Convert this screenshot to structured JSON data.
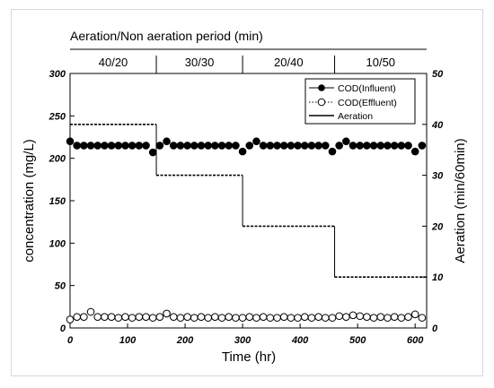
{
  "chart_data": {
    "type": "line",
    "title": "Aeration/Non aeration period (min)",
    "xlabel": "Time (hr)",
    "ylabel_left": "concentration (mg/L)",
    "ylabel_right": "Aeration (min/60min)",
    "xlim": [
      0,
      620
    ],
    "ylim_left": [
      0,
      300
    ],
    "ylim_right": [
      0,
      50
    ],
    "x_ticks": [
      "0",
      "100",
      "200",
      "300",
      "400",
      "500",
      "600"
    ],
    "y_left_ticks": [
      "0",
      "50",
      "100",
      "150",
      "200",
      "250",
      "300"
    ],
    "y_right_ticks": [
      "0",
      "10",
      "20",
      "30",
      "40",
      "50"
    ],
    "periods": [
      {
        "label": "40/20",
        "start": 0,
        "end": 150
      },
      {
        "label": "30/30",
        "start": 150,
        "end": 300
      },
      {
        "label": "20/40",
        "start": 300,
        "end": 460
      },
      {
        "label": "10/50",
        "start": 460,
        "end": 620
      }
    ],
    "legend": {
      "position": "top-right",
      "entries": [
        "COD(Influent)",
        "COD(Effluent)",
        "Aeration"
      ]
    },
    "series": [
      {
        "name": "COD(Influent)",
        "axis": "left",
        "marker": "filled-circle",
        "x": [
          0,
          12,
          24,
          36,
          48,
          60,
          72,
          84,
          96,
          108,
          120,
          132,
          144,
          156,
          168,
          180,
          192,
          204,
          216,
          228,
          240,
          252,
          264,
          276,
          288,
          300,
          312,
          324,
          336,
          348,
          360,
          372,
          384,
          396,
          408,
          420,
          432,
          444,
          456,
          468,
          480,
          492,
          504,
          516,
          528,
          540,
          552,
          564,
          576,
          588,
          600,
          612
        ],
        "y": [
          220,
          215,
          215,
          215,
          215,
          215,
          215,
          215,
          215,
          215,
          215,
          215,
          207,
          215,
          220,
          215,
          215,
          215,
          215,
          215,
          215,
          215,
          215,
          215,
          215,
          208,
          215,
          220,
          215,
          215,
          215,
          215,
          215,
          215,
          215,
          215,
          215,
          215,
          208,
          215,
          220,
          215,
          215,
          215,
          215,
          215,
          215,
          215,
          215,
          215,
          208,
          215
        ]
      },
      {
        "name": "COD(Effluent)",
        "axis": "left",
        "marker": "open-circle",
        "x": [
          0,
          12,
          24,
          36,
          48,
          60,
          72,
          84,
          96,
          108,
          120,
          132,
          144,
          156,
          168,
          180,
          192,
          204,
          216,
          228,
          240,
          252,
          264,
          276,
          288,
          300,
          312,
          324,
          336,
          348,
          360,
          372,
          384,
          396,
          408,
          420,
          432,
          444,
          456,
          468,
          480,
          492,
          504,
          516,
          528,
          540,
          552,
          564,
          576,
          588,
          600,
          612
        ],
        "y": [
          10,
          13,
          13,
          19,
          13,
          13,
          13,
          12,
          13,
          12,
          13,
          13,
          12,
          13,
          17,
          13,
          12,
          13,
          12,
          13,
          12,
          13,
          12,
          13,
          12,
          12,
          13,
          12,
          13,
          12,
          12,
          13,
          12,
          12,
          13,
          12,
          13,
          12,
          12,
          14,
          13,
          15,
          14,
          13,
          12,
          13,
          12,
          13,
          12,
          13,
          16,
          12
        ]
      },
      {
        "name": "Aeration",
        "axis": "right",
        "style": "dashed-step",
        "x": [
          0,
          150,
          150,
          300,
          300,
          460,
          460,
          620
        ],
        "y": [
          40,
          40,
          30,
          30,
          20,
          20,
          10,
          10
        ]
      }
    ]
  }
}
